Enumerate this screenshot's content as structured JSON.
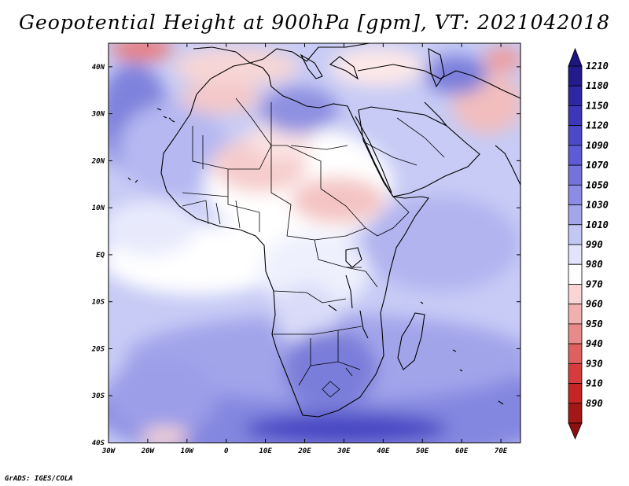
{
  "title": "Geopotential Height at 900hPa [gpm], VT: 2021042018",
  "credit": "GrADS: IGES/COLA",
  "map": {
    "projection": "latlon",
    "lon_range": [
      -30,
      75
    ],
    "lat_range": [
      -40,
      45
    ],
    "lon_ticks": [
      "30W",
      "20W",
      "10W",
      "0",
      "10E",
      "20E",
      "30E",
      "40E",
      "50E",
      "60E",
      "70E"
    ],
    "lat_ticks": [
      "40S",
      "30S",
      "20S",
      "10S",
      "EQ",
      "10N",
      "20N",
      "30N",
      "40N"
    ],
    "boundaries": "coastlines and country borders"
  },
  "colorbar": {
    "orientation": "vertical",
    "levels": [
      "1210",
      "1180",
      "1150",
      "1120",
      "1090",
      "1070",
      "1050",
      "1030",
      "1010",
      "990",
      "980",
      "970",
      "960",
      "950",
      "940",
      "930",
      "910",
      "890"
    ],
    "colors": [
      "#231a8c",
      "#2e27a3",
      "#3b37b8",
      "#4b49c8",
      "#5e5cd4",
      "#7473dc",
      "#8b8ce4",
      "#a3a6ec",
      "#c3c7f4",
      "#e2e4fb",
      "#ffffff",
      "#f9d5d5",
      "#f1b0b0",
      "#e88a8a",
      "#de6060",
      "#d63c3c",
      "#c42424",
      "#a21818"
    ]
  }
}
